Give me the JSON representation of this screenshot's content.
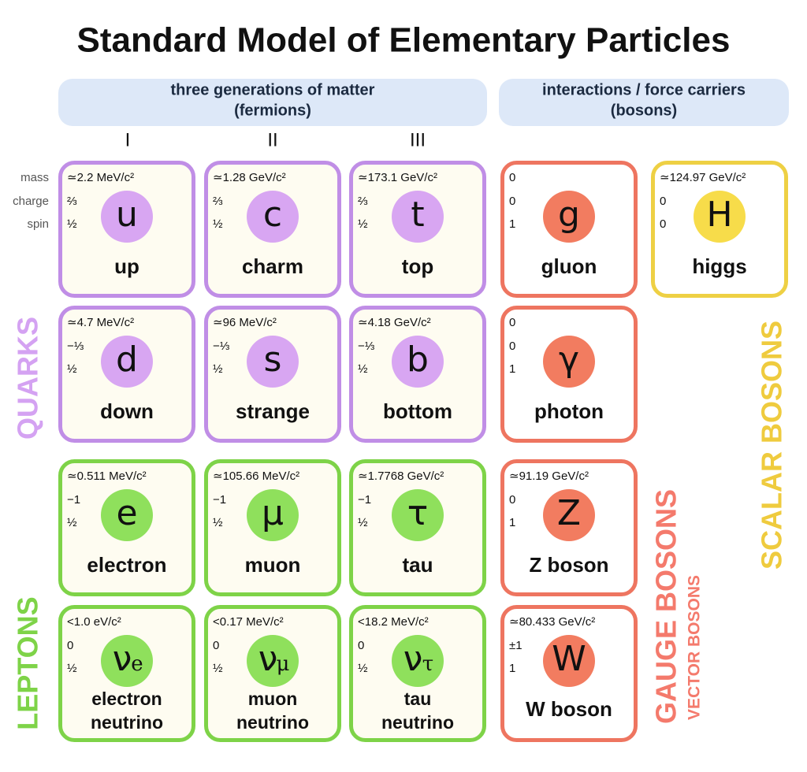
{
  "title": "Standard Model of Elementary Particles",
  "headers": [
    {
      "line1": "three generations of matter",
      "line2": "(fermions)"
    },
    {
      "line1": "interactions / force carriers",
      "line2": "(bosons)"
    }
  ],
  "generations": [
    "I",
    "II",
    "III"
  ],
  "row_labels": [
    "mass",
    "charge",
    "spin"
  ],
  "particles": [
    {
      "symbol": "u",
      "name": [
        "up"
      ],
      "mass": "≃2.2 MeV/c²",
      "charge": "⅔",
      "spin": "½"
    },
    {
      "symbol": "c",
      "name": [
        "charm"
      ],
      "mass": "≃1.28 GeV/c²",
      "charge": "⅔",
      "spin": "½"
    },
    {
      "symbol": "t",
      "name": [
        "top"
      ],
      "mass": "≃173.1 GeV/c²",
      "charge": "⅔",
      "spin": "½"
    },
    {
      "symbol": "g",
      "name": [
        "gluon"
      ],
      "mass": "0",
      "charge": "0",
      "spin": "1"
    },
    {
      "symbol": "H",
      "name": [
        "higgs"
      ],
      "mass": "≃124.97 GeV/c²",
      "charge": "0",
      "spin": "0"
    },
    {
      "symbol": "d",
      "name": [
        "down"
      ],
      "mass": "≃4.7 MeV/c²",
      "charge": "−⅓",
      "spin": "½"
    },
    {
      "symbol": "s",
      "name": [
        "strange"
      ],
      "mass": "≃96 MeV/c²",
      "charge": "−⅓",
      "spin": "½"
    },
    {
      "symbol": "b",
      "name": [
        "bottom"
      ],
      "mass": "≃4.18 GeV/c²",
      "charge": "−⅓",
      "spin": "½"
    },
    {
      "symbol": "γ",
      "name": [
        "photon"
      ],
      "mass": "0",
      "charge": "0",
      "spin": "1"
    },
    {
      "symbol": "e",
      "name": [
        "electron"
      ],
      "mass": "≃0.511 MeV/c²",
      "charge": "−1",
      "spin": "½"
    },
    {
      "symbol": "μ",
      "name": [
        "muon"
      ],
      "mass": "≃105.66 MeV/c²",
      "charge": "−1",
      "spin": "½"
    },
    {
      "symbol": "τ",
      "name": [
        "tau"
      ],
      "mass": "≃1.7768 GeV/c²",
      "charge": "−1",
      "spin": "½"
    },
    {
      "symbol": "Z",
      "name": [
        "Z boson"
      ],
      "mass": "≃91.19 GeV/c²",
      "charge": "0",
      "spin": "1"
    },
    {
      "symbol": "ν",
      "sub": "e",
      "name": [
        "electron",
        "neutrino"
      ],
      "mass": "<1.0 eV/c²",
      "charge": "0",
      "spin": "½"
    },
    {
      "symbol": "ν",
      "sub": "μ",
      "name": [
        "muon",
        "neutrino"
      ],
      "mass": "<0.17 MeV/c²",
      "charge": "0",
      "spin": "½"
    },
    {
      "symbol": "ν",
      "sub": "τ",
      "name": [
        "tau",
        "neutrino"
      ],
      "mass": "<18.2 MeV/c²",
      "charge": "0",
      "spin": "½"
    },
    {
      "symbol": "W",
      "name": [
        "W boson"
      ],
      "mass": "≃80.433 GeV/c²",
      "charge": "±1",
      "spin": "1"
    }
  ],
  "group_labels": {
    "quarks": "QUARKS",
    "leptons": "LEPTONS",
    "gauge": "GAUGE BOSONS",
    "vector": "VECTOR BOSONS",
    "scalar": "SCALAR BOSONS"
  }
}
